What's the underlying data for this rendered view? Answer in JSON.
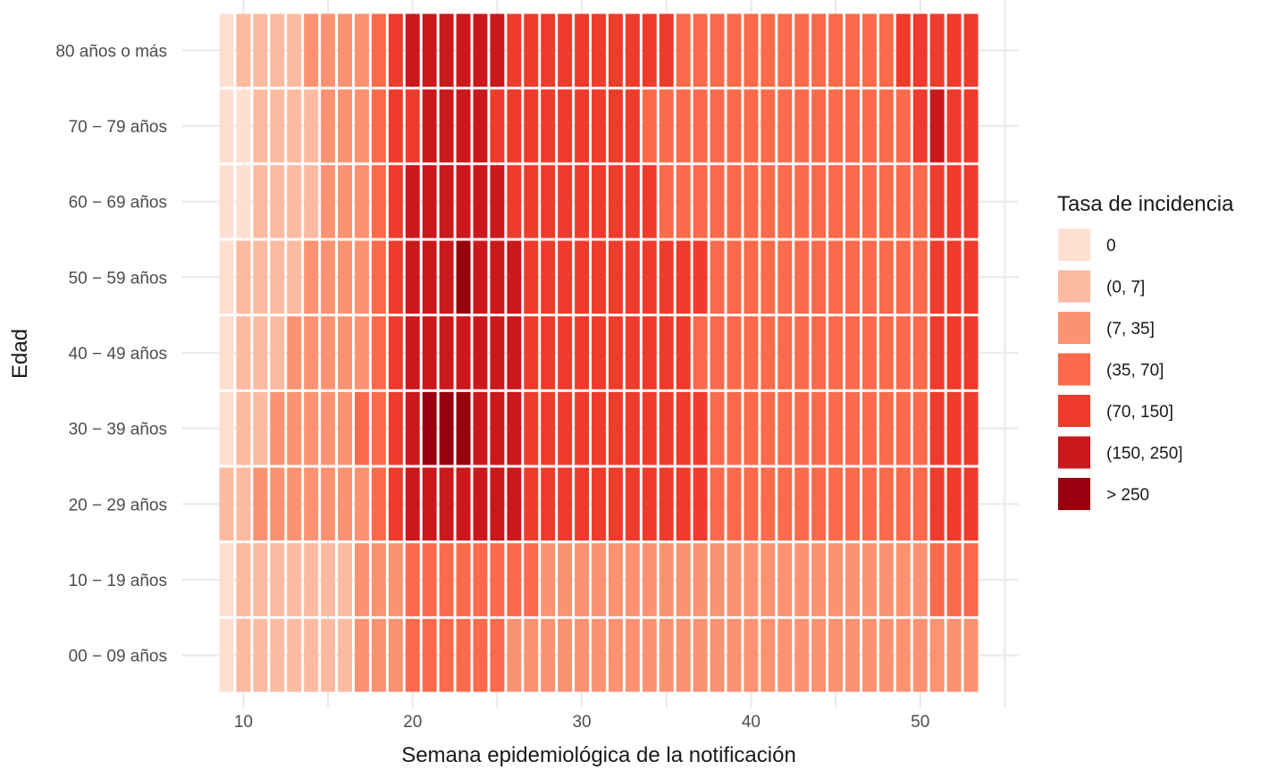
{
  "chart_data": {
    "type": "heatmap",
    "title": "",
    "xlabel": "Semana epidemiológica de la notificación",
    "ylabel": "Edad",
    "x_weeks_range": [
      9,
      53
    ],
    "x_ticks": [
      10,
      20,
      30,
      40,
      50
    ],
    "x_tick_labels": [
      "10",
      "20",
      "30",
      "40",
      "50"
    ],
    "y_categories": [
      "00 − 09 años",
      "10 − 19 años",
      "20 − 29 años",
      "30 − 39 años",
      "40 − 49 años",
      "50 − 59 años",
      "60 − 69 años",
      "70 − 79 años",
      "80 años o más"
    ],
    "legend": {
      "title": "Tasa de incidencia",
      "position": "right",
      "classes": [
        {
          "label": "0",
          "color": "#fee0d2"
        },
        {
          "label": "(0, 7]",
          "color": "#fcbba1"
        },
        {
          "label": "(7, 35]",
          "color": "#fc9272"
        },
        {
          "label": "(35, 70]",
          "color": "#fb6a4a"
        },
        {
          "label": "(70, 150]",
          "color": "#ef3b2c"
        },
        {
          "label": "(150, 250]",
          "color": "#cb181d"
        },
        {
          "label": "> 250",
          "color": "#99000d"
        }
      ]
    },
    "grid": true,
    "note": "rows list incidence class index (0-6 into legend.classes) for weeks 9..53, one row per age group in y_categories order",
    "rows": [
      [
        0,
        1,
        1,
        1,
        1,
        1,
        1,
        1,
        2,
        2,
        2,
        3,
        3,
        3,
        3,
        3,
        3,
        2,
        2,
        2,
        2,
        2,
        2,
        2,
        2,
        2,
        2,
        2,
        2,
        2,
        2,
        2,
        2,
        2,
        2,
        2,
        2,
        2,
        2,
        2,
        2,
        2,
        2,
        2,
        2
      ],
      [
        0,
        1,
        1,
        1,
        1,
        1,
        1,
        1,
        2,
        2,
        2,
        3,
        3,
        3,
        3,
        3,
        3,
        3,
        3,
        2,
        2,
        2,
        2,
        2,
        2,
        2,
        2,
        2,
        2,
        2,
        2,
        2,
        2,
        2,
        2,
        2,
        2,
        2,
        2,
        2,
        2,
        2,
        3,
        3,
        3
      ],
      [
        1,
        1,
        2,
        2,
        2,
        2,
        2,
        2,
        2,
        3,
        4,
        5,
        5,
        5,
        5,
        5,
        5,
        5,
        4,
        4,
        4,
        4,
        4,
        4,
        4,
        4,
        4,
        4,
        4,
        3,
        3,
        3,
        3,
        3,
        3,
        3,
        3,
        3,
        3,
        3,
        3,
        3,
        4,
        4,
        4
      ],
      [
        0,
        1,
        1,
        2,
        2,
        2,
        2,
        2,
        3,
        3,
        4,
        5,
        6,
        6,
        6,
        5,
        5,
        5,
        4,
        4,
        4,
        4,
        4,
        4,
        4,
        4,
        4,
        4,
        4,
        3,
        3,
        3,
        3,
        3,
        3,
        3,
        3,
        3,
        3,
        3,
        3,
        3,
        4,
        4,
        4
      ],
      [
        0,
        1,
        1,
        1,
        2,
        2,
        2,
        2,
        2,
        3,
        4,
        5,
        5,
        5,
        5,
        5,
        5,
        5,
        4,
        4,
        4,
        4,
        4,
        4,
        4,
        4,
        4,
        4,
        3,
        3,
        3,
        3,
        3,
        3,
        3,
        3,
        3,
        3,
        3,
        3,
        3,
        3,
        4,
        4,
        4
      ],
      [
        0,
        1,
        1,
        1,
        1,
        2,
        2,
        2,
        2,
        3,
        4,
        5,
        5,
        5,
        6,
        5,
        5,
        5,
        4,
        4,
        4,
        4,
        4,
        4,
        4,
        4,
        4,
        4,
        4,
        3,
        3,
        3,
        3,
        3,
        3,
        3,
        3,
        3,
        3,
        3,
        3,
        3,
        4,
        4,
        4
      ],
      [
        0,
        0,
        1,
        1,
        1,
        1,
        2,
        2,
        2,
        3,
        4,
        5,
        5,
        5,
        5,
        5,
        5,
        4,
        4,
        4,
        4,
        4,
        4,
        4,
        4,
        4,
        3,
        3,
        3,
        3,
        3,
        3,
        3,
        3,
        3,
        3,
        3,
        3,
        3,
        3,
        3,
        3,
        4,
        4,
        4
      ],
      [
        0,
        0,
        1,
        1,
        1,
        1,
        2,
        2,
        2,
        3,
        4,
        4,
        5,
        5,
        5,
        5,
        4,
        4,
        4,
        4,
        4,
        4,
        4,
        4,
        4,
        3,
        3,
        3,
        3,
        3,
        3,
        3,
        3,
        3,
        3,
        3,
        3,
        3,
        3,
        3,
        3,
        4,
        5,
        4,
        4
      ],
      [
        0,
        1,
        1,
        1,
        1,
        2,
        2,
        2,
        2,
        3,
        4,
        5,
        5,
        5,
        5,
        5,
        5,
        4,
        4,
        4,
        4,
        4,
        4,
        4,
        4,
        4,
        4,
        3,
        3,
        3,
        3,
        3,
        3,
        3,
        3,
        3,
        3,
        3,
        3,
        3,
        4,
        4,
        4,
        4,
        4
      ]
    ]
  }
}
